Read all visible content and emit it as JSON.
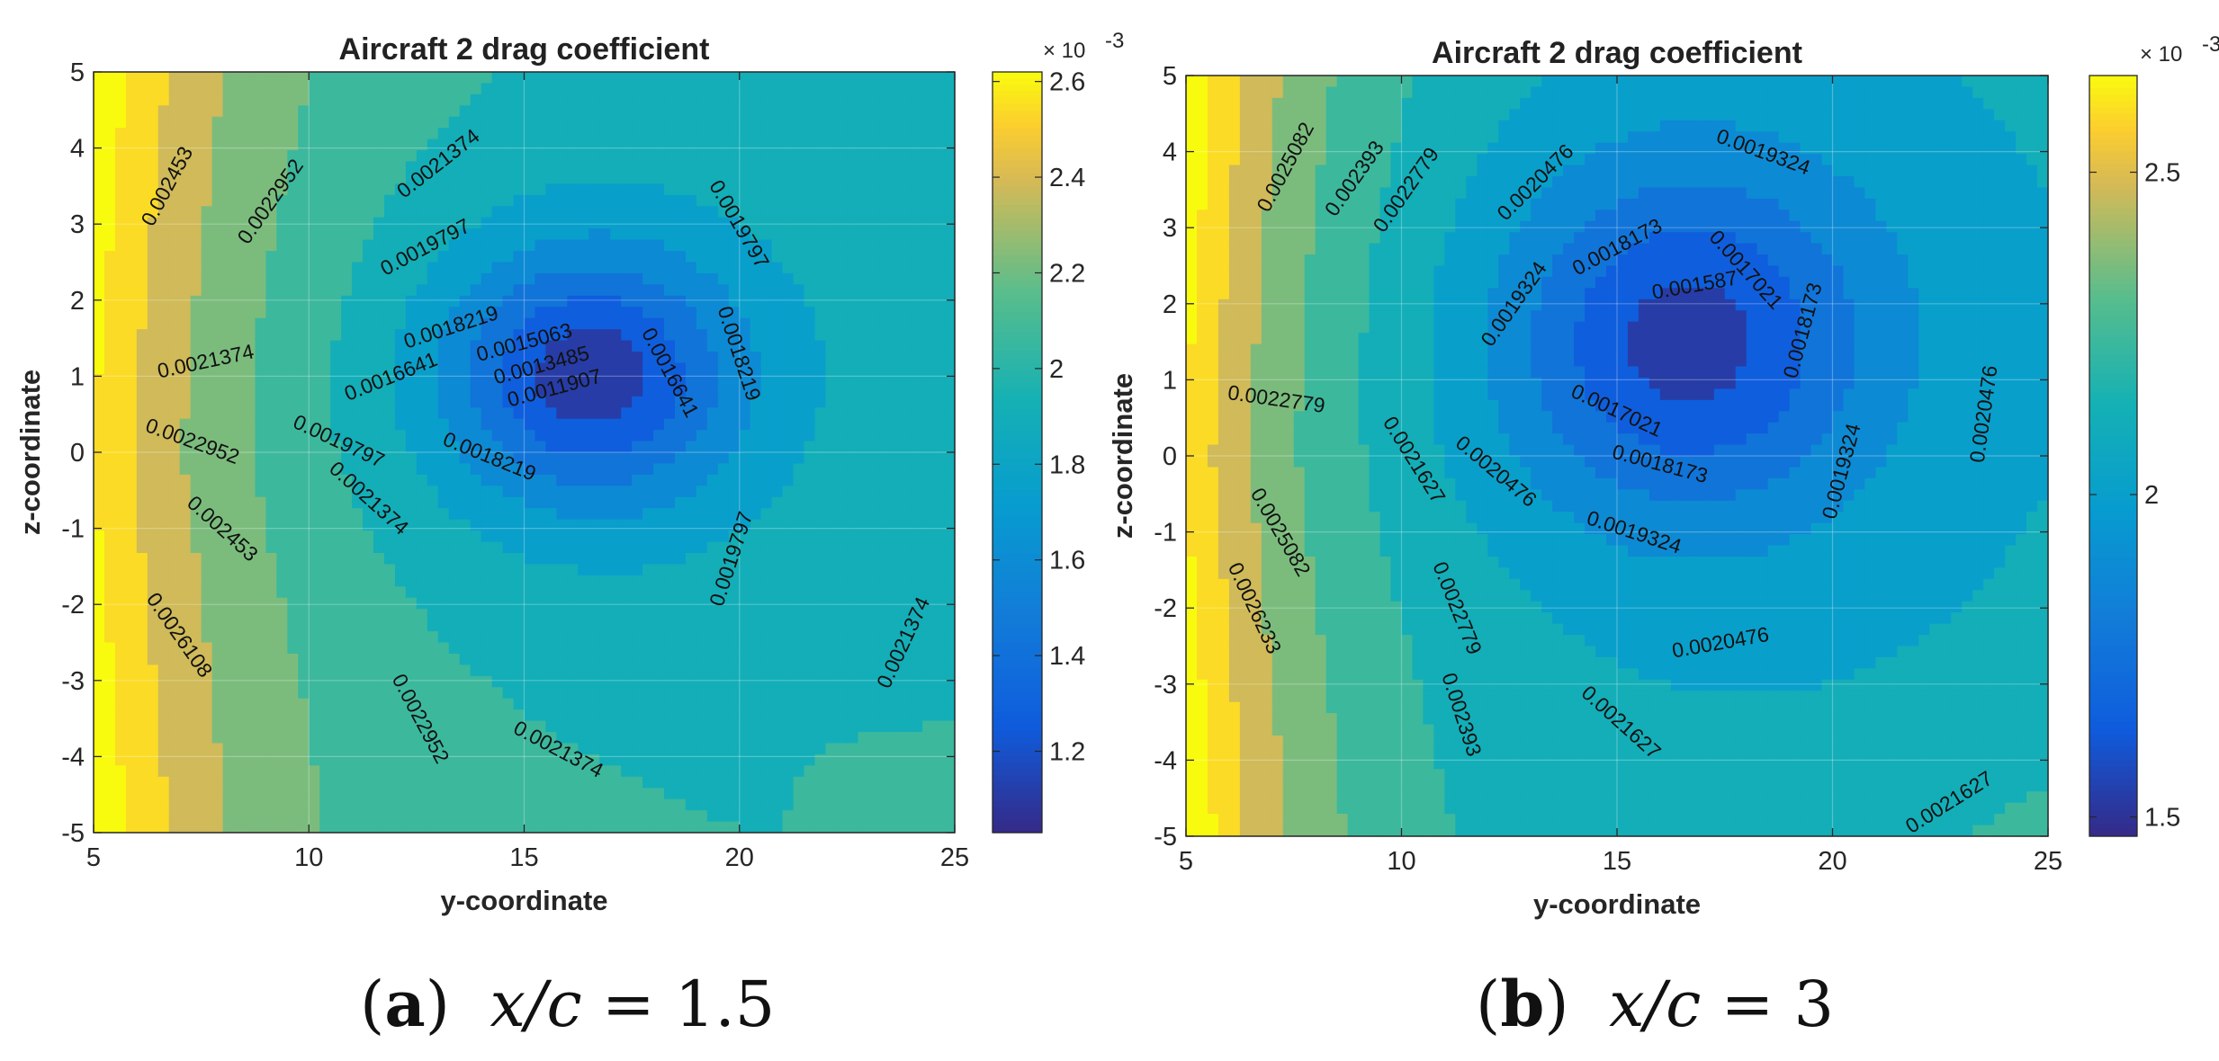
{
  "chart_data": [
    {
      "type": "contour",
      "title": "Aircraft 2 drag coefficient",
      "xlabel": "y-coordinate",
      "ylabel": "z-coordinate",
      "xlim": [
        5,
        25
      ],
      "ylim": [
        -5,
        5
      ],
      "xticks": [
        "5",
        "10",
        "15",
        "20",
        "25"
      ],
      "yticks": [
        "5",
        "4",
        "3",
        "2",
        "1",
        "0",
        "-1",
        "-2",
        "-3",
        "-4",
        "-5"
      ],
      "grid": true,
      "colormap": "parula",
      "clim": [
        1.03,
        2.62
      ],
      "colorbar_exponent": "× 10",
      "colorbar_exponent_power": "-3",
      "colorbar_ticks": [
        "2.6",
        "2.4",
        "2.2",
        "2",
        "1.8",
        "1.6",
        "1.4",
        "1.2"
      ],
      "colorbar_tick_values": [
        2.6,
        2.4,
        2.2,
        2.0,
        1.8,
        1.6,
        1.4,
        1.2
      ],
      "minimum_at": [
        16.5,
        1.0
      ],
      "contour_levels": [
        "0.0026108",
        "0.002453",
        "0.0022952",
        "0.0021374",
        "0.0019797",
        "0.0018219",
        "0.0016641",
        "0.0015063",
        "0.0013485",
        "0.0011907"
      ],
      "contour_labels": [
        {
          "text": "0.002453",
          "x": 6.7,
          "y": 3.5,
          "angle": -62
        },
        {
          "text": "0.0022952",
          "x": 9.1,
          "y": 3.3,
          "angle": -55
        },
        {
          "text": "0.0021374",
          "x": 13.0,
          "y": 3.8,
          "angle": -38
        },
        {
          "text": "0.0019797",
          "x": 12.7,
          "y": 2.7,
          "angle": -28
        },
        {
          "text": "0.0019797",
          "x": 20.0,
          "y": 3.0,
          "angle": 60
        },
        {
          "text": "0.0018219",
          "x": 13.3,
          "y": 1.65,
          "angle": -18
        },
        {
          "text": "0.0018219",
          "x": 20.0,
          "y": 1.3,
          "angle": 72
        },
        {
          "text": "0.0021374",
          "x": 7.6,
          "y": 1.2,
          "angle": -12
        },
        {
          "text": "0.0016641",
          "x": 11.9,
          "y": 1.0,
          "angle": -22
        },
        {
          "text": "0.0015063",
          "x": 15.0,
          "y": 1.45,
          "angle": -15
        },
        {
          "text": "0.0013485",
          "x": 15.4,
          "y": 1.15,
          "angle": -15
        },
        {
          "text": "0.0011907",
          "x": 15.7,
          "y": 0.85,
          "angle": -15
        },
        {
          "text": "0.0016641",
          "x": 18.4,
          "y": 1.05,
          "angle": 62
        },
        {
          "text": "0.0022952",
          "x": 7.3,
          "y": 0.15,
          "angle": 20
        },
        {
          "text": "0.0019797",
          "x": 10.7,
          "y": 0.15,
          "angle": 25
        },
        {
          "text": "0.0018219",
          "x": 14.2,
          "y": -0.05,
          "angle": 22
        },
        {
          "text": "0.0021374",
          "x": 11.4,
          "y": -0.6,
          "angle": 42
        },
        {
          "text": "0.002453",
          "x": 8.0,
          "y": -1.0,
          "angle": 42
        },
        {
          "text": "0.0019797",
          "x": 19.8,
          "y": -1.4,
          "angle": -72
        },
        {
          "text": "0.0026108",
          "x": 7.0,
          "y": -2.4,
          "angle": 55
        },
        {
          "text": "0.0022952",
          "x": 12.6,
          "y": -3.5,
          "angle": 62
        },
        {
          "text": "0.0021374",
          "x": 15.8,
          "y": -3.9,
          "angle": 28
        },
        {
          "text": "0.0021374",
          "x": 23.8,
          "y": -2.5,
          "angle": -65
        }
      ],
      "caption_tag": "a",
      "caption_math": "x/c",
      "caption_value": "= 1.5"
    },
    {
      "type": "contour",
      "title": "Aircraft 2 drag coefficient",
      "xlabel": "y-coordinate",
      "ylabel": "z-coordinate",
      "xlim": [
        5,
        25
      ],
      "ylim": [
        -5,
        5
      ],
      "xticks": [
        "5",
        "10",
        "15",
        "20",
        "25"
      ],
      "yticks": [
        "5",
        "4",
        "3",
        "2",
        "1",
        "0",
        "-1",
        "-2",
        "-3",
        "-4",
        "-5"
      ],
      "grid": true,
      "colormap": "parula",
      "clim": [
        1.47,
        2.65
      ],
      "colorbar_exponent": "× 10",
      "colorbar_exponent_power": "-3",
      "colorbar_ticks": [
        "2.5",
        "2",
        "1.5"
      ],
      "colorbar_tick_values": [
        2.5,
        2.0,
        1.5
      ],
      "minimum_at": [
        16.6,
        1.5
      ],
      "contour_levels": [
        "0.0026233",
        "0.0025082",
        "0.002393",
        "0.0022779",
        "0.0021627",
        "0.0020476",
        "0.0019324",
        "0.0018173",
        "0.0017021",
        "0.001587"
      ],
      "contour_labels": [
        {
          "text": "0.0025082",
          "x": 7.3,
          "y": 3.8,
          "angle": -62
        },
        {
          "text": "0.002393",
          "x": 8.9,
          "y": 3.65,
          "angle": -55
        },
        {
          "text": "0.0022779",
          "x": 10.1,
          "y": 3.5,
          "angle": -55
        },
        {
          "text": "0.0020476",
          "x": 13.1,
          "y": 3.6,
          "angle": -45
        },
        {
          "text": "0.0019324",
          "x": 18.4,
          "y": 4.0,
          "angle": 20
        },
        {
          "text": "0.0018173",
          "x": 15.0,
          "y": 2.75,
          "angle": -28
        },
        {
          "text": "0.001587",
          "x": 16.8,
          "y": 2.25,
          "angle": -10
        },
        {
          "text": "0.0017021",
          "x": 18.0,
          "y": 2.45,
          "angle": 48
        },
        {
          "text": "0.0018173",
          "x": 19.3,
          "y": 1.65,
          "angle": -75
        },
        {
          "text": "0.0019324",
          "x": 12.6,
          "y": 2.0,
          "angle": -55
        },
        {
          "text": "0.0022779",
          "x": 7.1,
          "y": 0.75,
          "angle": 8
        },
        {
          "text": "0.0017021",
          "x": 15.0,
          "y": 0.6,
          "angle": 25
        },
        {
          "text": "0.0018173",
          "x": 16.0,
          "y": -0.1,
          "angle": 15
        },
        {
          "text": "0.0019324",
          "x": 20.2,
          "y": -0.2,
          "angle": -75
        },
        {
          "text": "0.0020476",
          "x": 23.5,
          "y": 0.55,
          "angle": -82
        },
        {
          "text": "0.0021627",
          "x": 10.3,
          "y": -0.05,
          "angle": 58
        },
        {
          "text": "0.0020476",
          "x": 12.2,
          "y": -0.2,
          "angle": 40
        },
        {
          "text": "0.0019324",
          "x": 15.4,
          "y": -1.0,
          "angle": 18
        },
        {
          "text": "0.0025082",
          "x": 7.2,
          "y": -1.0,
          "angle": 60
        },
        {
          "text": "0.0026233",
          "x": 6.6,
          "y": -2.0,
          "angle": 65
        },
        {
          "text": "0.0022779",
          "x": 11.3,
          "y": -2.0,
          "angle": 68
        },
        {
          "text": "0.0020476",
          "x": 17.4,
          "y": -2.45,
          "angle": -10
        },
        {
          "text": "0.002393",
          "x": 11.4,
          "y": -3.4,
          "angle": 72
        },
        {
          "text": "0.0021627",
          "x": 15.1,
          "y": -3.5,
          "angle": 42
        },
        {
          "text": "0.0021627",
          "x": 22.7,
          "y": -4.55,
          "angle": -32
        }
      ],
      "caption_tag": "b",
      "caption_math": "x/c",
      "caption_value": "= 3"
    }
  ]
}
